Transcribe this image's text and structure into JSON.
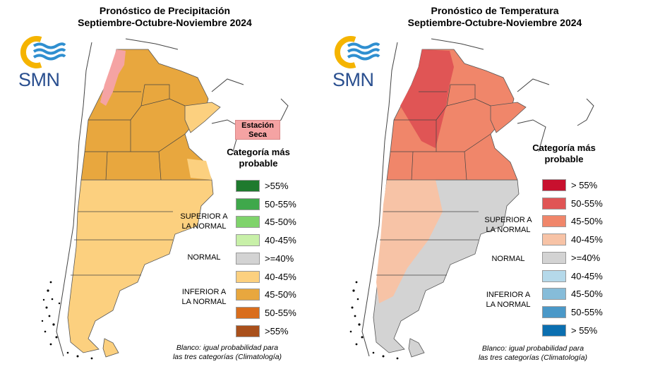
{
  "left": {
    "title_line1": "Pronóstico de Precipitación",
    "title_line2": "Septiembre-Octubre-Noviembre 2024",
    "logo_text": "SMN",
    "dry_station": {
      "line1": "Estación",
      "line2": "Seca",
      "color": "#f5a3a3"
    },
    "legend_title_line1": "Categoría más",
    "legend_title_line2": "probable",
    "superior_line1": "SUPERIOR A",
    "superior_line2": "LA NORMAL",
    "normal_label": "NORMAL",
    "inferior_line1": "INFERIOR A",
    "inferior_line2": "LA NORMAL",
    "legend": [
      {
        "label": ">55%",
        "color": "#1e7a2e"
      },
      {
        "label": "50-55%",
        "color": "#3fa84b"
      },
      {
        "label": "45-50%",
        "color": "#7fd36b"
      },
      {
        "label": "40-45%",
        "color": "#c8f0a8"
      },
      {
        "label": ">=40%",
        "color": "#d3d3d3"
      },
      {
        "label": "40-45%",
        "color": "#fcd07f"
      },
      {
        "label": "45-50%",
        "color": "#e8a73e"
      },
      {
        "label": "50-55%",
        "color": "#d96d1c"
      },
      {
        "label": ">55%",
        "color": "#a9501b"
      }
    ],
    "footnote_line1": "Blanco: igual probabilidad para",
    "footnote_line2": "las tres categorías (Climatología)"
  },
  "right": {
    "title_line1": "Pronóstico de Temperatura",
    "title_line2": "Septiembre-Octubre-Noviembre 2024",
    "logo_text": "SMN",
    "legend_title_line1": "Categoría más",
    "legend_title_line2": "probable",
    "superior_line1": "SUPERIOR A",
    "superior_line2": "LA NORMAL",
    "normal_label": "NORMAL",
    "inferior_line1": "INFERIOR A",
    "inferior_line2": "LA NORMAL",
    "legend": [
      {
        "label": "> 55%",
        "color": "#c8102e"
      },
      {
        "label": "50-55%",
        "color": "#e05555"
      },
      {
        "label": "45-50%",
        "color": "#f0866a"
      },
      {
        "label": "40-45%",
        "color": "#f7c3a6"
      },
      {
        "label": ">=40%",
        "color": "#d3d3d3"
      },
      {
        "label": "40-45%",
        "color": "#b5d9ea"
      },
      {
        "label": "45-50%",
        "color": "#86bcd9"
      },
      {
        "label": "50-55%",
        "color": "#4a98c8"
      },
      {
        "label": "> 55%",
        "color": "#0b6fb0"
      }
    ],
    "footnote_line1": "Blanco: igual probabilidad para",
    "footnote_line2": "las tres categorías (Climatología)"
  },
  "colors": {
    "logo_ring": "#f5b400",
    "logo_waves": "#2f8fd0",
    "logo_text": "#2a4f8f",
    "precip_north": "#e8a73e",
    "precip_south": "#fcd07f",
    "temp_north": "#f0866a",
    "temp_northwest": "#e05555",
    "temp_central": "#f7c3a6",
    "temp_south": "#d3d3d3"
  }
}
